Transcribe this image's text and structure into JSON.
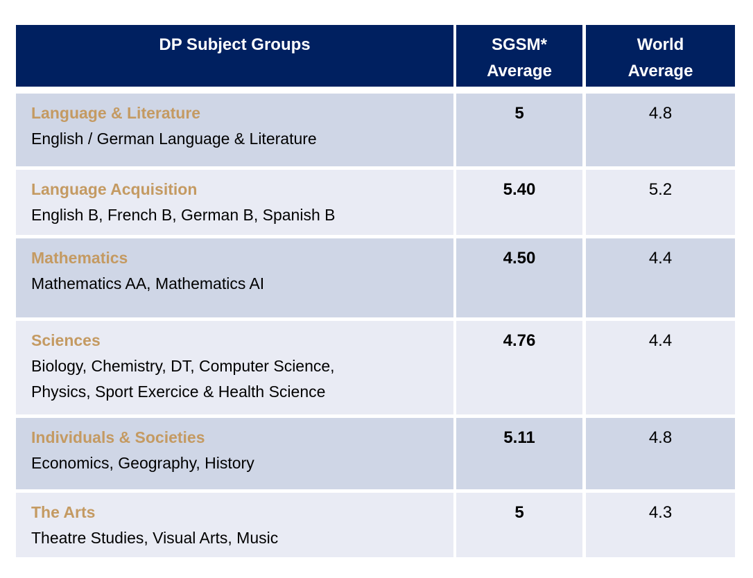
{
  "header": {
    "col1": "DP Subject Groups",
    "col2_line1": "SGSM*",
    "col2_line2": "Average",
    "col3_line1": "World",
    "col3_line2": "Average"
  },
  "rows": [
    {
      "group": "Language & Literature",
      "subjects": [
        "English / German Language & Literature"
      ],
      "sgsm": "5",
      "world": "4.8"
    },
    {
      "group": "Language Acquisition",
      "subjects": [
        "English B, French B, German B, Spanish B"
      ],
      "sgsm": "5.40",
      "world": "5.2"
    },
    {
      "group": "Mathematics",
      "subjects": [
        "Mathematics AA, Mathematics AI"
      ],
      "sgsm": "4.50",
      "world": "4.4"
    },
    {
      "group": "Sciences",
      "subjects": [
        "Biology, Chemistry, DT, Computer Science,",
        "Physics, Sport Exercice & Health Science"
      ],
      "sgsm": "4.76",
      "world": "4.4"
    },
    {
      "group": "Individuals & Societies",
      "subjects": [
        "Economics, Geography, History"
      ],
      "sgsm": "5.11",
      "world": "4.8"
    },
    {
      "group": "The Arts",
      "subjects": [
        "Theatre Studies, Visual Arts, Music"
      ],
      "sgsm": "5",
      "world": "4.3"
    }
  ],
  "colors": {
    "header": "#002060",
    "row_odd": "#CFD6E6",
    "row_even": "#E9EBF4",
    "group": "#C49A62"
  }
}
